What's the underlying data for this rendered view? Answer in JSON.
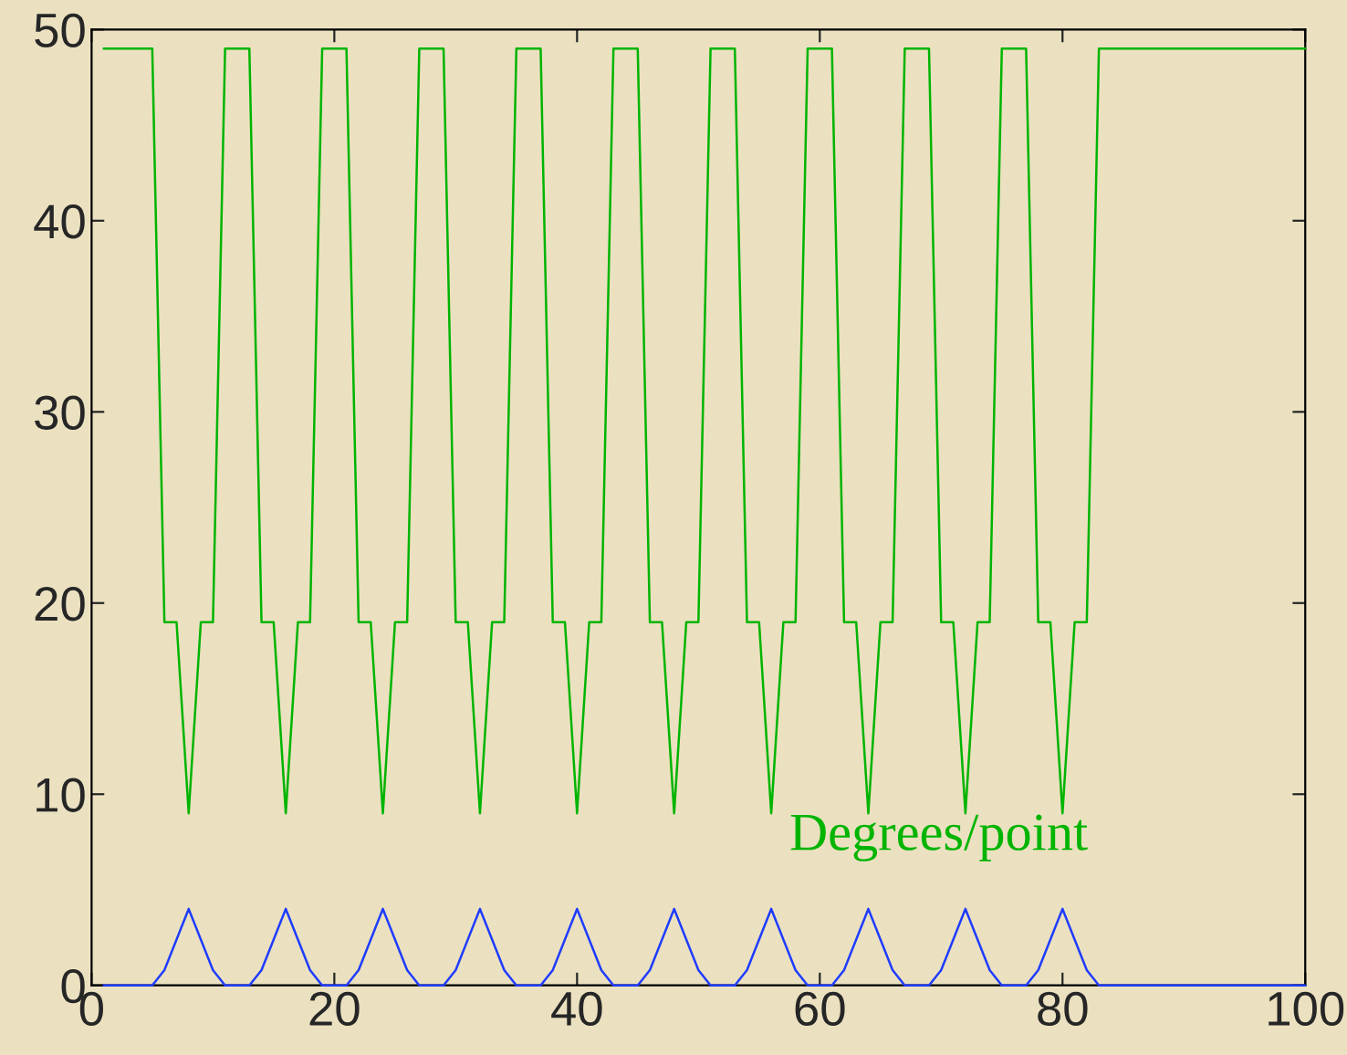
{
  "chart_data": {
    "type": "line",
    "x": [
      1,
      2,
      3,
      4,
      5,
      6,
      7,
      8,
      9,
      10,
      11,
      12,
      13,
      14,
      15,
      16,
      17,
      18,
      19,
      20,
      21,
      22,
      23,
      24,
      25,
      26,
      27,
      28,
      29,
      30,
      31,
      32,
      33,
      34,
      35,
      36,
      37,
      38,
      39,
      40,
      41,
      42,
      43,
      44,
      45,
      46,
      47,
      48,
      49,
      50,
      51,
      52,
      53,
      54,
      55,
      56,
      57,
      58,
      59,
      60,
      61,
      62,
      63,
      64,
      65,
      66,
      67,
      68,
      69,
      70,
      71,
      72,
      73,
      74,
      75,
      76,
      77,
      78,
      79,
      80,
      81,
      82,
      83,
      84,
      85,
      86,
      87,
      88,
      89,
      90,
      91,
      92,
      93,
      94,
      95,
      96,
      97,
      98,
      99,
      100
    ],
    "series": [
      {
        "name": "Degrees/point",
        "color": "#00b400",
        "values": [
          49,
          49,
          49,
          49,
          49,
          19,
          19,
          9,
          19,
          19,
          49,
          49,
          49,
          19,
          19,
          9,
          19,
          19,
          49,
          49,
          49,
          19,
          19,
          9,
          19,
          19,
          49,
          49,
          49,
          19,
          19,
          9,
          19,
          19,
          49,
          49,
          49,
          19,
          19,
          9,
          19,
          19,
          49,
          49,
          49,
          19,
          19,
          9,
          19,
          19,
          49,
          49,
          49,
          19,
          19,
          9,
          19,
          19,
          49,
          49,
          49,
          19,
          19,
          9,
          19,
          19,
          49,
          49,
          49,
          19,
          19,
          9,
          19,
          19,
          49,
          49,
          49,
          19,
          19,
          9,
          19,
          19,
          49,
          49,
          49,
          49,
          49,
          49,
          49,
          49,
          49,
          49,
          49,
          49,
          49,
          49,
          49,
          49,
          49,
          49
        ]
      },
      {
        "color": "#1f3cff",
        "values": [
          0,
          0,
          0,
          0,
          0,
          0.8,
          2.4,
          4,
          2.4,
          0.8,
          0,
          0,
          0,
          0.8,
          2.4,
          4,
          2.4,
          0.8,
          0,
          0,
          0,
          0.8,
          2.4,
          4,
          2.4,
          0.8,
          0,
          0,
          0,
          0.8,
          2.4,
          4,
          2.4,
          0.8,
          0,
          0,
          0,
          0.8,
          2.4,
          4,
          2.4,
          0.8,
          0,
          0,
          0,
          0.8,
          2.4,
          4,
          2.4,
          0.8,
          0,
          0,
          0,
          0.8,
          2.4,
          4,
          2.4,
          0.8,
          0,
          0,
          0,
          0.8,
          2.4,
          4,
          2.4,
          0.8,
          0,
          0,
          0,
          0.8,
          2.4,
          4,
          2.4,
          0.8,
          0,
          0,
          0,
          0.8,
          2.4,
          4,
          2.4,
          0.8,
          0,
          0,
          0,
          0,
          0,
          0,
          0,
          0,
          0,
          0,
          0,
          0,
          0,
          0,
          0,
          0,
          0,
          0
        ]
      }
    ],
    "xlim": [
      0,
      100
    ],
    "xticks": [
      0,
      20,
      40,
      60,
      80,
      100
    ],
    "ylim": [
      0,
      50
    ],
    "yticks": [
      0,
      10,
      20,
      30,
      40,
      50
    ],
    "grid": false,
    "legend": false,
    "marker": "none",
    "line_style": "solid"
  }
}
